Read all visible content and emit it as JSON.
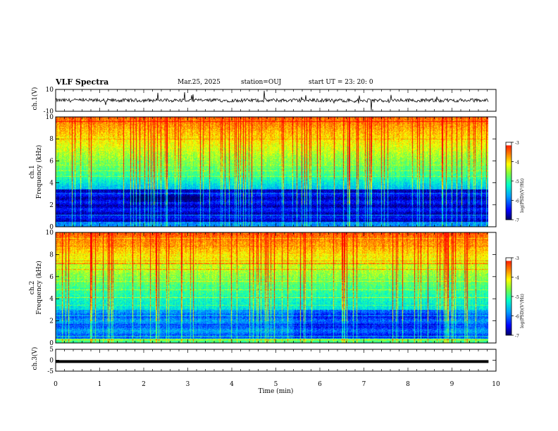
{
  "header": {
    "title": "VLF Spectra",
    "date": "Mar.25, 2025",
    "station": "station=OUJ",
    "start": "start  UT =   23: 20: 0"
  },
  "chart_data": [
    {
      "type": "line",
      "ylabel": "ch.1(V)",
      "ylim": [
        -10,
        10
      ],
      "ytick_labels": [
        "10",
        "-10"
      ],
      "baseline": 0,
      "description_level": "noisy waveform near 0 V with spikes"
    },
    {
      "type": "heatmap",
      "ylabel_channel": "ch.1",
      "ylabel": "Frequency (kHz)",
      "ylim": [
        0,
        10
      ],
      "ytick_labels": [
        "0",
        "2",
        "4",
        "6",
        "8",
        "10"
      ],
      "colorbar": {
        "label": "log(PSD)(V²/Hz)",
        "range": [
          -7,
          -3
        ],
        "tick_labels": [
          "-3",
          "-4",
          "-5",
          "-6",
          "-7"
        ],
        "colors": [
          "#000080",
          "#0000ff",
          "#00a0ff",
          "#00ffc0",
          "#80ff40",
          "#ffff00",
          "#ff8000",
          "#ff0000",
          "#ffffff"
        ]
      }
    },
    {
      "type": "heatmap",
      "ylabel_channel": "ch.2",
      "ylabel": "Frequency (kHz)",
      "ylim": [
        0,
        10
      ],
      "ytick_labels": [
        "0",
        "2",
        "4",
        "6",
        "8",
        "10"
      ],
      "colorbar": {
        "label": "log(PSD)(V²/Hz)",
        "range": [
          -7,
          -3
        ],
        "tick_labels": [
          "-3",
          "-4",
          "-5",
          "-6",
          "-7"
        ]
      }
    },
    {
      "type": "line",
      "ylabel": "ch.3(V)",
      "ylim": [
        -5,
        5
      ],
      "ytick_labels": [
        "5",
        "0",
        "-5"
      ],
      "baseline": -0.6
    }
  ],
  "xaxis": {
    "label": "Time (min)",
    "xlim": [
      0,
      10
    ],
    "tick_labels": [
      "0",
      "1",
      "2",
      "3",
      "4",
      "5",
      "6",
      "7",
      "8",
      "9",
      "10"
    ],
    "data_end": 9.83
  }
}
